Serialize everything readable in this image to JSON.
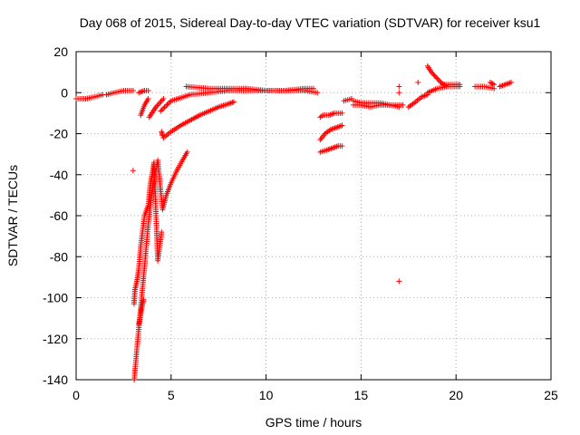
{
  "chart_data": {
    "type": "scatter",
    "title": "Day 068 of 2015, Sidereal Day-to-day VTEC variation (SDTVAR) for receiver ksu1",
    "xlabel": "GPS time / hours",
    "ylabel": "SDTVAR / TECUs",
    "xlim": [
      0,
      25
    ],
    "ylim": [
      -140,
      20
    ],
    "xticks": [
      0,
      5,
      10,
      15,
      20,
      25
    ],
    "yticks": [
      -140,
      -120,
      -100,
      -80,
      -60,
      -40,
      -20,
      0,
      20
    ],
    "grid": true,
    "marker": "+",
    "series_color": "#ff0000",
    "segments": [
      {
        "x": [
          0.0,
          0.5,
          1.0,
          1.4
        ],
        "y": [
          -3,
          -3,
          -2,
          -1
        ]
      },
      {
        "x": [
          1.6,
          2.0,
          2.5,
          3.0
        ],
        "y": [
          -1,
          0,
          1,
          1
        ]
      },
      {
        "x": [
          3.3,
          3.6,
          3.8
        ],
        "y": [
          0,
          1,
          1
        ]
      },
      {
        "x": [
          3.4,
          3.6,
          3.8
        ],
        "y": [
          -11,
          -6,
          -3
        ]
      },
      {
        "x": [
          3.85,
          4.2,
          4.6
        ],
        "y": [
          -12,
          -7,
          -3
        ]
      },
      {
        "x": [
          4.45,
          5.0,
          6.0,
          7.0,
          8.0,
          9.0,
          10.0,
          11.0,
          12.0,
          12.7
        ],
        "y": [
          -9,
          -4,
          -1,
          0,
          1,
          1,
          1,
          1,
          1,
          0
        ]
      },
      {
        "x": [
          5.8,
          7.0,
          8.0,
          9.0,
          10.0,
          11.0,
          12.0,
          12.5
        ],
        "y": [
          3,
          2,
          2,
          2,
          1,
          1,
          2,
          2
        ]
      },
      {
        "x": [
          4.6,
          5.0,
          5.5,
          6.0,
          6.5,
          7.0,
          7.5,
          8.0,
          8.3
        ],
        "y": [
          -22,
          -19,
          -16,
          -13.5,
          -11,
          -9,
          -7,
          -5.5,
          -4.5
        ]
      },
      {
        "x": [
          4.5,
          4.55
        ],
        "y": [
          -19,
          -21
        ]
      },
      {
        "x": [
          3.05,
          3.2,
          3.4,
          3.6,
          3.8,
          4.0,
          4.3,
          4.55,
          4.75,
          5.0,
          5.3,
          5.6,
          5.85
        ],
        "y": [
          -141,
          -125,
          -105,
          -85,
          -64,
          -48,
          -33,
          -57,
          -50,
          -44,
          -38,
          -33,
          -29
        ]
      },
      {
        "x": [
          3.05,
          3.1,
          3.2,
          3.3,
          3.4,
          3.6,
          3.8,
          3.9,
          4.0,
          4.1,
          4.3,
          4.5
        ],
        "y": [
          -103,
          -96,
          -92,
          -86,
          -75,
          -60,
          -55,
          -45,
          -40,
          -34,
          -82,
          -68
        ]
      },
      {
        "x": [
          3.3,
          3.4,
          3.5,
          3.55
        ],
        "y": [
          -113,
          -108,
          -103,
          -101
        ]
      },
      {
        "x": [
          3.0
        ],
        "y": [
          -38
        ]
      },
      {
        "x": [
          12.85,
          13.0,
          13.3,
          13.6,
          13.9,
          14.0
        ],
        "y": [
          -12,
          -11,
          -11,
          -10,
          -10,
          -10
        ]
      },
      {
        "x": [
          12.85,
          13.1,
          13.4,
          13.7,
          14.0
        ],
        "y": [
          -23,
          -20,
          -18,
          -17,
          -16
        ]
      },
      {
        "x": [
          12.85,
          13.2,
          13.5,
          13.8,
          14.0
        ],
        "y": [
          -29,
          -28,
          -27,
          -26,
          -26
        ]
      },
      {
        "x": [
          14.1,
          14.5
        ],
        "y": [
          -4,
          -3
        ]
      },
      {
        "x": [
          14.6,
          15.0,
          15.5,
          16.0,
          16.5,
          17.0,
          17.2
        ],
        "y": [
          -4,
          -5,
          -5,
          -5,
          -6,
          -6,
          -6
        ]
      },
      {
        "x": [
          14.6,
          15.0,
          15.5,
          16.0,
          16.5,
          17.0
        ],
        "y": [
          -6,
          -6,
          -7,
          -6,
          -6,
          -7
        ]
      },
      {
        "x": [
          17.0
        ],
        "y": [
          3
        ]
      },
      {
        "x": [
          17.0
        ],
        "y": [
          0
        ]
      },
      {
        "x": [
          17.0
        ],
        "y": [
          -92
        ]
      },
      {
        "x": [
          17.5,
          17.8,
          18.2,
          18.5
        ],
        "y": [
          -7,
          -5,
          -2,
          -1
        ]
      },
      {
        "x": [
          18.0
        ],
        "y": [
          5
        ]
      },
      {
        "x": [
          18.5,
          18.7,
          19.0,
          19.2,
          19.5
        ],
        "y": [
          13,
          10,
          7,
          5,
          3
        ]
      },
      {
        "x": [
          18.5,
          19.0,
          19.5,
          20.0,
          20.2
        ],
        "y": [
          0,
          2,
          3,
          3,
          3
        ]
      },
      {
        "x": [
          19.3,
          19.6,
          20.0,
          20.2
        ],
        "y": [
          4,
          4,
          4,
          4
        ]
      },
      {
        "x": [
          21.0,
          21.5,
          22.0
        ],
        "y": [
          3,
          3,
          2
        ]
      },
      {
        "x": [
          21.8,
          22.0
        ],
        "y": [
          5,
          4
        ]
      },
      {
        "x": [
          22.3,
          22.6,
          22.9
        ],
        "y": [
          3,
          4,
          5
        ]
      }
    ]
  }
}
